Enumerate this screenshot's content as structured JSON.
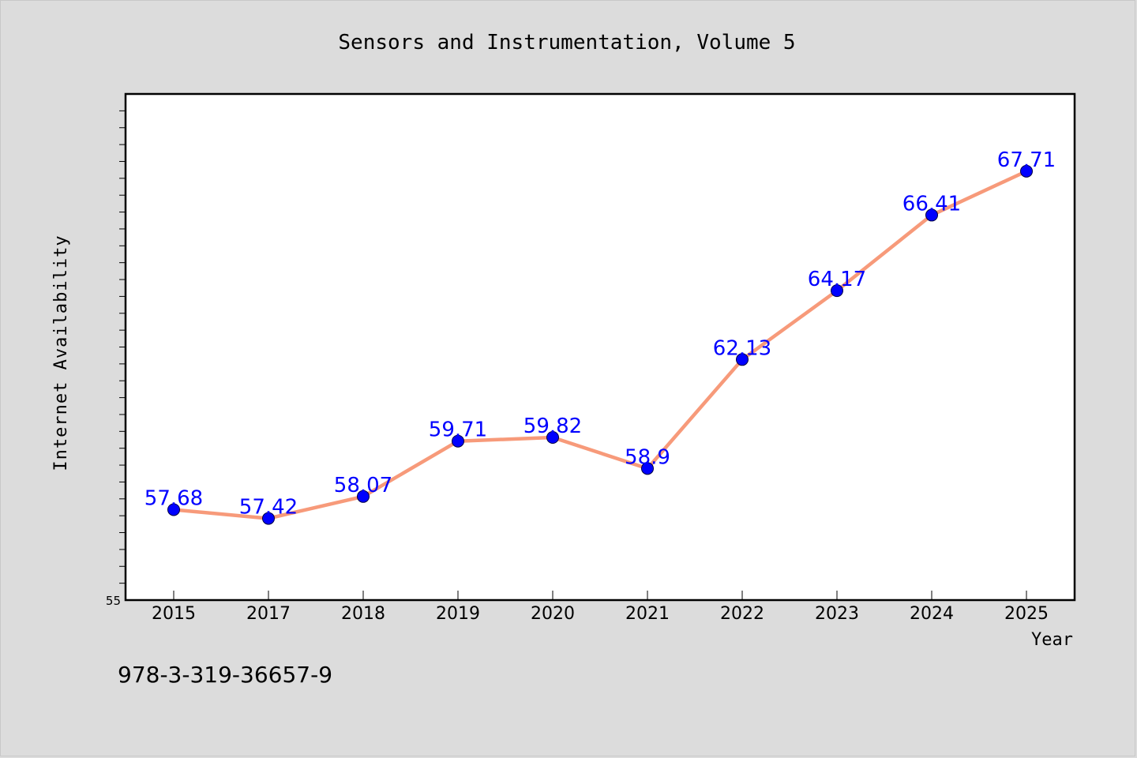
{
  "chart_data": {
    "type": "line",
    "title": "Sensors and Instrumentation, Volume 5",
    "xlabel": "Year",
    "ylabel": "Internet Availability",
    "categories": [
      "2015",
      "2017",
      "2018",
      "2019",
      "2020",
      "2021",
      "2022",
      "2023",
      "2024",
      "2025"
    ],
    "series": [
      {
        "values": [
          57.68,
          57.42,
          58.07,
          59.71,
          59.82,
          58.9,
          62.13,
          64.17,
          66.41,
          67.71
        ],
        "labels": [
          "57.68",
          "57.42",
          "58.07",
          "59.71",
          "59.82",
          "58.9",
          "62.13",
          "64.17",
          "66.41",
          "67.71"
        ]
      }
    ],
    "ylim": [
      55,
      70
    ],
    "y_tick_labels": [
      "55"
    ],
    "grid": false,
    "legend": "none",
    "colors": {
      "line": "#f79a7a",
      "marker": "#0000ff",
      "data_label": "#0000ff",
      "background": "#dcdcdc",
      "plot_area": "#ffffff"
    }
  },
  "footer_text": "978-3-319-36657-9"
}
